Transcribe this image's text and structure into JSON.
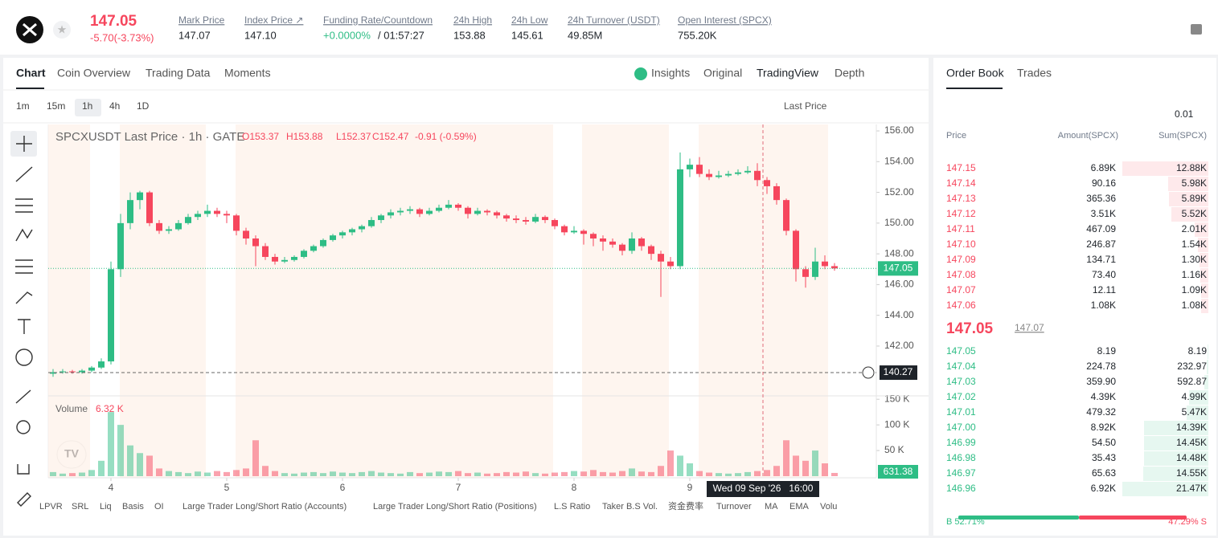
{
  "header": {
    "price": "147.05",
    "change": "-5.70(-3.73%)",
    "stats": [
      {
        "label": "Mark Price",
        "value": "147.07"
      },
      {
        "label": "Index Price ↗",
        "value": "147.10"
      },
      {
        "label": "Funding Rate/Countdown",
        "value": "+0.0000%",
        "countdown": "/ 01:57:27"
      },
      {
        "label": "24h High",
        "value": "153.88"
      },
      {
        "label": "24h Low",
        "value": "145.61"
      },
      {
        "label": "24h Turnover (USDT)",
        "value": "49.85M"
      },
      {
        "label": "Open Interest (SPCX)",
        "value": "755.20K"
      }
    ]
  },
  "chart_tabs": [
    "Chart",
    "Coin Overview",
    "Trading Data",
    "Moments"
  ],
  "view_tabs": [
    "Insights",
    "Original",
    "TradingView",
    "Depth"
  ],
  "intervals": [
    "1m",
    "15m",
    "1h",
    "4h",
    "1D"
  ],
  "price_type": "Last Price",
  "indicators": [
    "LPVR",
    "SRL",
    "Liq",
    "Basis",
    "OI",
    "Large Trader Long/Short Ratio (Accounts)",
    "Large Trader Long/Short Ratio (Positions)",
    "L.S Ratio",
    "Taker B.S Vol.",
    "资金费率",
    "Turnover",
    "MA",
    "EMA",
    "Volu"
  ],
  "chart_data": {
    "type": "candlestick",
    "legend": "SPCXUSDT Last Price · 1h · GATE",
    "ohlc_labels": [
      "O153.37",
      "H153.88",
      "L152.37",
      "C152.47",
      "-0.91 (-0.59%)"
    ],
    "up_color": "#2ebd85",
    "down_color": "#f6465d",
    "candles": [
      [
        140.2,
        140.5,
        140.0,
        140.3
      ],
      [
        140.3,
        140.5,
        140.2,
        140.35
      ],
      [
        140.35,
        140.45,
        140.2,
        140.3
      ],
      [
        140.3,
        140.5,
        140.2,
        140.4
      ],
      [
        140.4,
        140.7,
        140.3,
        140.6
      ],
      [
        140.6,
        141.2,
        140.5,
        141.0
      ],
      [
        141.0,
        147.5,
        140.8,
        147.0
      ],
      [
        147.0,
        150.6,
        146.5,
        150.0
      ],
      [
        150.0,
        152.0,
        149.6,
        151.5
      ],
      [
        151.5,
        152.1,
        150.9,
        152.0
      ],
      [
        152.0,
        152.1,
        149.8,
        150.0
      ],
      [
        150.0,
        150.2,
        149.3,
        149.5
      ],
      [
        149.5,
        149.8,
        149.3,
        149.6
      ],
      [
        149.6,
        150.2,
        149.5,
        150.0
      ],
      [
        150.0,
        150.6,
        149.9,
        150.4
      ],
      [
        150.4,
        150.8,
        150.2,
        150.6
      ],
      [
        150.6,
        151.2,
        150.4,
        150.8
      ],
      [
        150.8,
        151.0,
        150.4,
        150.6
      ],
      [
        150.6,
        150.8,
        150.0,
        150.5
      ],
      [
        150.5,
        150.6,
        149.2,
        149.5
      ],
      [
        149.5,
        149.7,
        148.6,
        149.0
      ],
      [
        149.0,
        149.2,
        147.2,
        148.5
      ],
      [
        148.5,
        148.7,
        147.6,
        147.8
      ],
      [
        147.8,
        148.0,
        147.3,
        147.5
      ],
      [
        147.5,
        147.8,
        147.4,
        147.6
      ],
      [
        147.6,
        147.9,
        147.5,
        147.8
      ],
      [
        147.8,
        148.3,
        147.7,
        148.2
      ],
      [
        148.2,
        148.6,
        148.1,
        148.5
      ],
      [
        148.5,
        149.0,
        148.4,
        148.9
      ],
      [
        148.9,
        149.3,
        148.8,
        149.2
      ],
      [
        149.2,
        149.5,
        149.0,
        149.4
      ],
      [
        149.4,
        149.7,
        149.2,
        149.6
      ],
      [
        149.6,
        149.9,
        149.4,
        149.8
      ],
      [
        149.8,
        150.4,
        149.7,
        150.2
      ],
      [
        150.2,
        150.6,
        150.0,
        150.5
      ],
      [
        150.5,
        150.9,
        150.3,
        150.7
      ],
      [
        150.7,
        151.0,
        150.5,
        150.8
      ],
      [
        150.8,
        151.1,
        150.6,
        150.9
      ],
      [
        150.9,
        151.0,
        150.4,
        150.6
      ],
      [
        150.6,
        151.0,
        150.5,
        150.8
      ],
      [
        150.8,
        151.2,
        150.7,
        151.0
      ],
      [
        151.0,
        151.5,
        150.9,
        151.2
      ],
      [
        151.2,
        151.3,
        150.8,
        151.0
      ],
      [
        151.0,
        151.1,
        150.3,
        150.6
      ],
      [
        150.6,
        151.0,
        150.5,
        150.8
      ],
      [
        150.8,
        150.9,
        150.5,
        150.7
      ],
      [
        150.7,
        150.8,
        150.3,
        150.5
      ],
      [
        150.5,
        150.6,
        150.1,
        150.3
      ],
      [
        150.3,
        150.5,
        150.0,
        150.2
      ],
      [
        150.2,
        150.4,
        149.9,
        150.1
      ],
      [
        150.1,
        150.6,
        150.0,
        150.4
      ],
      [
        150.4,
        150.5,
        150.0,
        150.2
      ],
      [
        150.2,
        150.3,
        149.6,
        149.8
      ],
      [
        149.8,
        149.9,
        149.2,
        149.4
      ],
      [
        149.4,
        149.8,
        149.3,
        149.5
      ],
      [
        149.5,
        149.6,
        148.6,
        149.3
      ],
      [
        149.3,
        149.4,
        148.5,
        149.0
      ],
      [
        149.0,
        149.2,
        148.2,
        148.8
      ],
      [
        148.8,
        149.0,
        148.4,
        148.6
      ],
      [
        148.6,
        148.7,
        147.9,
        148.2
      ],
      [
        148.2,
        149.4,
        148.0,
        149.0
      ],
      [
        149.0,
        149.1,
        148.2,
        148.5
      ],
      [
        148.5,
        148.6,
        147.6,
        148.0
      ],
      [
        148.0,
        148.2,
        145.2,
        147.5
      ],
      [
        147.5,
        147.8,
        147.0,
        147.2
      ],
      [
        147.2,
        154.6,
        147.0,
        153.5
      ],
      [
        153.5,
        154.2,
        153.0,
        153.8
      ],
      [
        153.8,
        154.3,
        153.0,
        153.2
      ],
      [
        153.2,
        153.5,
        152.8,
        153.0
      ],
      [
        153.0,
        153.4,
        152.9,
        153.1
      ],
      [
        153.1,
        153.4,
        153.0,
        153.2
      ],
      [
        153.2,
        153.5,
        153.1,
        153.3
      ],
      [
        153.3,
        153.7,
        153.2,
        153.4
      ],
      [
        153.4,
        153.9,
        152.4,
        152.8
      ],
      [
        152.8,
        153.0,
        151.9,
        152.4
      ],
      [
        152.4,
        152.6,
        151.2,
        151.5
      ],
      [
        151.5,
        151.6,
        149.2,
        149.5
      ],
      [
        149.5,
        149.6,
        146.2,
        147.0
      ],
      [
        147.0,
        147.2,
        145.8,
        146.5
      ],
      [
        146.5,
        148.4,
        146.3,
        147.5
      ],
      [
        147.5,
        147.9,
        147.0,
        147.2
      ],
      [
        147.2,
        147.4,
        146.9,
        147.05
      ]
    ],
    "volume": [
      8,
      5,
      6,
      7,
      12,
      30,
      125,
      100,
      60,
      45,
      40,
      15,
      10,
      8,
      6,
      9,
      7,
      10,
      8,
      12,
      15,
      70,
      20,
      10,
      6,
      5,
      7,
      8,
      6,
      9,
      7,
      6,
      8,
      10,
      7,
      6,
      5,
      8,
      6,
      7,
      9,
      8,
      10,
      6,
      7,
      5,
      6,
      8,
      7,
      9,
      6,
      5,
      7,
      8,
      10,
      9,
      12,
      8,
      7,
      10,
      15,
      9,
      8,
      20,
      50,
      40,
      25,
      10,
      7,
      6,
      5,
      6,
      8,
      10,
      12,
      20,
      70,
      40,
      30,
      50,
      25,
      6.32
    ],
    "ylim": [
      138.81,
      156.42
    ],
    "yticks": [
      {
        "value": 156,
        "label": "156.00"
      },
      {
        "value": 154,
        "label": "154.00"
      },
      {
        "value": 152,
        "label": "152.00"
      },
      {
        "value": 150,
        "label": "150.00"
      },
      {
        "value": 148,
        "label": "148.00"
      },
      {
        "value": 146,
        "label": "146.00"
      },
      {
        "value": 144,
        "label": "144.00"
      },
      {
        "value": 142,
        "label": "142.00"
      }
    ],
    "volume_ylim": [
      0,
      155
    ],
    "volume_yticks": [
      {
        "value": 150,
        "label": "150 K"
      },
      {
        "value": 100,
        "label": "100 K"
      },
      {
        "value": 50,
        "label": "50 K"
      }
    ],
    "volume_label": "Volume",
    "volume_value": "6.32 K",
    "volume_tag": "631.38",
    "xticks": [
      {
        "value": 6,
        "label": "4"
      },
      {
        "value": 18,
        "label": "5"
      },
      {
        "value": 30,
        "label": "6"
      },
      {
        "value": 42,
        "label": "7"
      },
      {
        "value": 54,
        "label": "8"
      },
      {
        "value": 66,
        "label": "9"
      }
    ],
    "price_line": {
      "value": 147.05,
      "label": "147.05"
    },
    "crosshair_price": {
      "value": 140.27,
      "label": "140.27"
    },
    "crosshair_time": "Wed 09 Sep '26   16:00"
  },
  "order_book": {
    "tabs": [
      "Order Book",
      "Trades"
    ],
    "tick": "0.01",
    "columns": [
      "Price",
      "Amount(SPCX)",
      "Sum(SPCX)"
    ],
    "asks": [
      [
        "147.15",
        "6.89K",
        "12.88K"
      ],
      [
        "147.14",
        "90.16",
        "5.98K"
      ],
      [
        "147.13",
        "365.36",
        "5.89K"
      ],
      [
        "147.12",
        "3.51K",
        "5.52K"
      ],
      [
        "147.11",
        "467.09",
        "2.01K"
      ],
      [
        "147.10",
        "246.87",
        "1.54K"
      ],
      [
        "147.09",
        "134.71",
        "1.30K"
      ],
      [
        "147.08",
        "73.40",
        "1.16K"
      ],
      [
        "147.07",
        "12.11",
        "1.09K"
      ],
      [
        "147.06",
        "1.08K",
        "1.08K"
      ]
    ],
    "last": "147.05",
    "mark": "147.07",
    "bids": [
      [
        "147.05",
        "8.19",
        "8.19"
      ],
      [
        "147.04",
        "224.78",
        "232.97"
      ],
      [
        "147.03",
        "359.90",
        "592.87"
      ],
      [
        "147.02",
        "4.39K",
        "4.99K"
      ],
      [
        "147.01",
        "479.32",
        "5.47K"
      ],
      [
        "147.00",
        "8.92K",
        "14.39K"
      ],
      [
        "146.99",
        "54.50",
        "14.45K"
      ],
      [
        "146.98",
        "35.43",
        "14.48K"
      ],
      [
        "146.97",
        "65.63",
        "14.55K"
      ],
      [
        "146.96",
        "6.92K",
        "21.47K"
      ]
    ],
    "buy": "B 52.71%",
    "sell": "47.29% S"
  }
}
